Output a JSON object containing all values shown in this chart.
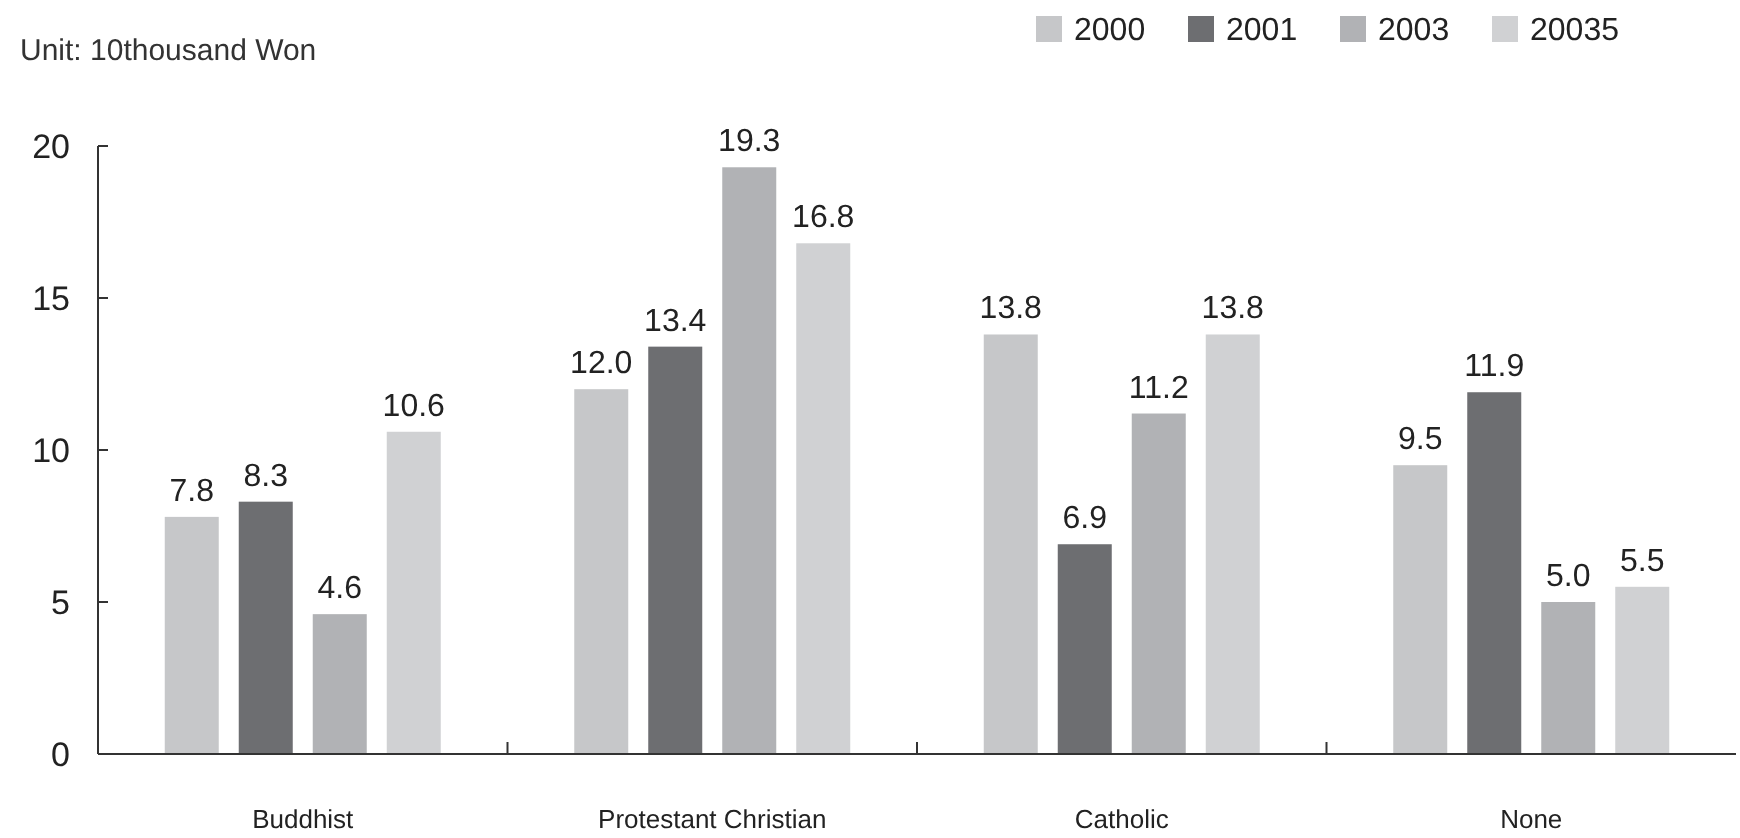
{
  "chart_data": {
    "type": "bar",
    "ylabel": "Unit: 10thousand Won",
    "categories": [
      "Buddhist",
      "Protestant Christian",
      "Catholic",
      "None"
    ],
    "series": [
      {
        "name": "2000",
        "color": "#c6c7c9",
        "values": [
          7.8,
          12.0,
          13.8,
          9.5
        ],
        "value_labels": [
          "7.8",
          "12.0",
          "13.8",
          "9.5"
        ]
      },
      {
        "name": "2001",
        "color": "#6d6e71",
        "values": [
          8.3,
          13.4,
          6.9,
          11.9
        ],
        "value_labels": [
          "8.3",
          "13.4",
          "6.9",
          "11.9"
        ]
      },
      {
        "name": "2003",
        "color": "#b1b2b5",
        "values": [
          4.6,
          19.3,
          11.2,
          5.0
        ],
        "value_labels": [
          "4.6",
          "19.3",
          "11.2",
          "5.0"
        ]
      },
      {
        "name": "20035",
        "color": "#d0d1d3",
        "values": [
          10.6,
          16.8,
          13.8,
          5.5
        ],
        "value_labels": [
          "10.6",
          "16.8",
          "13.8",
          "5.5"
        ]
      }
    ],
    "ylim": [
      0,
      20
    ],
    "yticks": [
      0,
      5,
      10,
      15,
      20
    ],
    "legend": "top"
  }
}
